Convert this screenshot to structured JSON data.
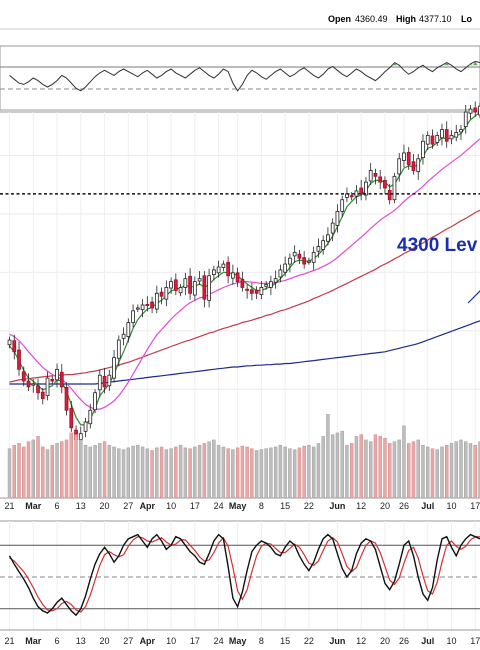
{
  "chart_data": {
    "type": "candlestick",
    "header": {
      "open_label": "Open",
      "open_value": "4360.49",
      "high_label": "High",
      "high_value": "4377.10",
      "low_label": "Lo"
    },
    "annotation": {
      "text": "4300 Lev",
      "level": 4300,
      "color": "#1a2fb0"
    },
    "x_ticks": [
      {
        "label": "21",
        "pos": 0
      },
      {
        "label": "Mar",
        "pos": 5,
        "major": true
      },
      {
        "label": "6",
        "pos": 10
      },
      {
        "label": "13",
        "pos": 15
      },
      {
        "label": "20",
        "pos": 20
      },
      {
        "label": "27",
        "pos": 25
      },
      {
        "label": "Apr",
        "pos": 29,
        "major": true
      },
      {
        "label": "10",
        "pos": 34
      },
      {
        "label": "17",
        "pos": 39
      },
      {
        "label": "24",
        "pos": 44
      },
      {
        "label": "May",
        "pos": 48,
        "major": true
      },
      {
        "label": "8",
        "pos": 53
      },
      {
        "label": "15",
        "pos": 58
      },
      {
        "label": "22",
        "pos": 63
      },
      {
        "label": "Jun",
        "pos": 69,
        "major": true
      },
      {
        "label": "12",
        "pos": 74
      },
      {
        "label": "20",
        "pos": 79
      },
      {
        "label": "26",
        "pos": 83
      },
      {
        "label": "Jul",
        "pos": 88,
        "major": true
      },
      {
        "label": "10",
        "pos": 93
      },
      {
        "label": "17",
        "pos": 98
      }
    ],
    "x_range": [
      -2,
      99
    ],
    "price_range": [
      3780,
      4440
    ],
    "closes": [
      4050,
      4030,
      4000,
      3980,
      3970,
      3975,
      3960,
      3950,
      3985,
      3980,
      4000,
      3970,
      3930,
      3900,
      3880,
      3890,
      3910,
      3930,
      3960,
      3990,
      3970,
      3990,
      4020,
      4050,
      4060,
      4080,
      4100,
      4105,
      4110,
      4110,
      4105,
      4130,
      4125,
      4140,
      4150,
      4135,
      4140,
      4155,
      4130,
      4150,
      4155,
      4120,
      4160,
      4170,
      4175,
      4180,
      4160,
      4165,
      4150,
      4140,
      4135,
      4130,
      4130,
      4140,
      4145,
      4150,
      4155,
      4170,
      4180,
      4190,
      4200,
      4190,
      4180,
      4185,
      4200,
      4210,
      4220,
      4230,
      4250,
      4270,
      4290,
      4300,
      4295,
      4305,
      4300,
      4320,
      4340,
      4330,
      4320,
      4310,
      4290,
      4330,
      4360,
      4370,
      4350,
      4340,
      4360,
      4390,
      4400,
      4385,
      4400,
      4410,
      4390,
      4400,
      4405,
      4410,
      4440,
      4445,
      4440,
      4450
    ],
    "ma_short": [
      4040,
      4030,
      4015,
      3998,
      3985,
      3980,
      3972,
      3965,
      3968,
      3972,
      3982,
      3980,
      3962,
      3940,
      3918,
      3905,
      3905,
      3915,
      3932,
      3955,
      3965,
      3975,
      3992,
      4012,
      4030,
      4050,
      4070,
      4085,
      4095,
      4103,
      4106,
      4113,
      4118,
      4126,
      4134,
      4137,
      4139,
      4144,
      4141,
      4142,
      4146,
      4140,
      4145,
      4154,
      4160,
      4166,
      4165,
      4164,
      4160,
      4153,
      4146,
      4140,
      4135,
      4135,
      4138,
      4142,
      4147,
      4155,
      4164,
      4174,
      4184,
      4187,
      4185,
      4185,
      4189,
      4196,
      4205,
      4215,
      4228,
      4244,
      4261,
      4278,
      4287,
      4295,
      4298,
      4306,
      4318,
      4323,
      4323,
      4320,
      4312,
      4317,
      4330,
      4344,
      4348,
      4346,
      4350,
      4364,
      4378,
      4381,
      4388,
      4396,
      4394,
      4396,
      4399,
      4403,
      4415,
      4427,
      4433,
      4440
    ],
    "ma_medium": [
      4060,
      4056,
      4049,
      4040,
      4030,
      4021,
      4012,
      4003,
      3997,
      3991,
      3987,
      3983,
      3976,
      3967,
      3957,
      3948,
      3940,
      3935,
      3932,
      3932,
      3935,
      3940,
      3946,
      3955,
      3966,
      3978,
      3992,
      4006,
      4020,
      4034,
      4047,
      4059,
      4068,
      4077,
      4086,
      4094,
      4101,
      4108,
      4114,
      4118,
      4122,
      4124,
      4128,
      4132,
      4136,
      4140,
      4143,
      4146,
      4148,
      4150,
      4150,
      4149,
      4148,
      4147,
      4147,
      4147,
      4148,
      4150,
      4152,
      4155,
      4158,
      4161,
      4163,
      4166,
      4169,
      4172,
      4176,
      4180,
      4185,
      4191,
      4198,
      4205,
      4212,
      4219,
      4226,
      4233,
      4241,
      4248,
      4255,
      4261,
      4266,
      4272,
      4279,
      4287,
      4294,
      4300,
      4306,
      4313,
      4321,
      4328,
      4335,
      4342,
      4348,
      4354,
      4360,
      4366,
      4373,
      4380,
      4387,
      4394
    ],
    "ma_long": [
      3978,
      3980,
      3982,
      3983,
      3984,
      3985,
      3986,
      3987,
      3988,
      3989,
      3990,
      3990,
      3991,
      3991,
      3992,
      3993,
      3994,
      3996,
      3997,
      3999,
      4001,
      4003,
      4005,
      4007,
      4010,
      4012,
      4015,
      4018,
      4021,
      4024,
      4027,
      4030,
      4033,
      4036,
      4039,
      4042,
      4045,
      4048,
      4050,
      4053,
      4056,
      4059,
      4062,
      4064,
      4067,
      4070,
      4072,
      4075,
      4077,
      4080,
      4082,
      4084,
      4087,
      4089,
      4092,
      4094,
      4097,
      4100,
      4102,
      4105,
      4108,
      4111,
      4114,
      4117,
      4121,
      4124,
      4128,
      4131,
      4135,
      4139,
      4143,
      4147,
      4151,
      4155,
      4159,
      4163,
      4167,
      4171,
      4176,
      4180,
      4184,
      4189,
      4193,
      4198,
      4202,
      4207,
      4212,
      4216,
      4221,
      4226,
      4230,
      4235,
      4240,
      4244,
      4249,
      4254,
      4258,
      4263,
      4268,
      4272
    ],
    "ma_longest": [
      3975,
      3975,
      3975,
      3975,
      3975,
      3975,
      3975,
      3975,
      3975,
      3975,
      3975,
      3975,
      3975,
      3975,
      3975,
      3975,
      3975,
      3975,
      3975,
      3976,
      3977,
      3978,
      3979,
      3980,
      3981,
      3982,
      3983,
      3984,
      3985,
      3986,
      3987,
      3988,
      3989,
      3990,
      3991,
      3992,
      3993,
      3994,
      3995,
      3996,
      3997,
      3998,
      3999,
      4000,
      4001,
      4002,
      4003,
      4004,
      4004,
      4005,
      4006,
      4006,
      4007,
      4007,
      4008,
      4008,
      4009,
      4009,
      4010,
      4010,
      4011,
      4012,
      4013,
      4014,
      4015,
      4016,
      4017,
      4018,
      4019,
      4020,
      4021,
      4022,
      4023,
      4024,
      4025,
      4026,
      4027,
      4028,
      4029,
      4030,
      4032,
      4034,
      4036,
      4038,
      4040,
      4042,
      4044,
      4047,
      4050,
      4053,
      4056,
      4059,
      4062,
      4065,
      4068,
      4071,
      4074,
      4077,
      4080,
      4083
    ],
    "volume_range": [
      0,
      100
    ],
    "volume": [
      56,
      60,
      62,
      58,
      64,
      66,
      70,
      58,
      55,
      60,
      62,
      64,
      66,
      74,
      72,
      66,
      60,
      58,
      60,
      62,
      64,
      60,
      58,
      56,
      55,
      57,
      59,
      60,
      58,
      56,
      54,
      57,
      58,
      55,
      56,
      58,
      60,
      57,
      56,
      58,
      60,
      62,
      64,
      66,
      60,
      58,
      56,
      55,
      57,
      59,
      58,
      56,
      54,
      55,
      56,
      57,
      58,
      60,
      58,
      56,
      55,
      57,
      59,
      60,
      58,
      62,
      70,
      95,
      72,
      74,
      76,
      60,
      62,
      70,
      72,
      66,
      64,
      72,
      70,
      68,
      62,
      64,
      66,
      82,
      62,
      64,
      66,
      60,
      58,
      56,
      55,
      58,
      60,
      62,
      64,
      66,
      64,
      62,
      60,
      64
    ],
    "oscillator_range": [
      0,
      100
    ],
    "oscillator_levels": [
      80,
      50,
      20
    ],
    "oscillator_k": [
      70,
      62,
      55,
      48,
      40,
      30,
      22,
      18,
      16,
      20,
      26,
      30,
      24,
      18,
      14,
      20,
      32,
      48,
      62,
      72,
      78,
      72,
      64,
      70,
      80,
      86,
      88,
      90,
      84,
      78,
      86,
      90,
      84,
      76,
      80,
      88,
      86,
      80,
      74,
      70,
      64,
      62,
      72,
      84,
      90,
      86,
      60,
      30,
      22,
      36,
      56,
      74,
      80,
      84,
      82,
      78,
      72,
      70,
      78,
      84,
      80,
      70,
      62,
      56,
      64,
      76,
      86,
      90,
      86,
      72,
      58,
      50,
      56,
      72,
      82,
      86,
      84,
      76,
      60,
      44,
      38,
      46,
      62,
      80,
      84,
      70,
      50,
      34,
      28,
      40,
      66,
      86,
      88,
      78,
      70,
      80,
      86,
      90,
      88,
      86
    ],
    "oscillator_d": [
      68,
      65,
      60,
      55,
      48,
      40,
      31,
      24,
      19,
      18,
      20,
      25,
      27,
      24,
      19,
      17,
      22,
      33,
      47,
      61,
      71,
      74,
      71,
      69,
      71,
      79,
      85,
      88,
      87,
      84,
      83,
      85,
      87,
      83,
      80,
      81,
      85,
      85,
      80,
      75,
      69,
      65,
      66,
      73,
      82,
      87,
      79,
      59,
      37,
      29,
      38,
      55,
      70,
      79,
      82,
      81,
      77,
      73,
      73,
      77,
      81,
      78,
      71,
      63,
      61,
      65,
      75,
      84,
      87,
      83,
      72,
      60,
      55,
      59,
      70,
      80,
      84,
      82,
      73,
      60,
      47,
      43,
      49,
      63,
      75,
      78,
      68,
      51,
      37,
      34,
      45,
      64,
      80,
      84,
      79,
      76,
      79,
      85,
      88,
      88
    ],
    "momentum": [
      52,
      49,
      46,
      45,
      47,
      50,
      48,
      45,
      43,
      45,
      48,
      52,
      50,
      46,
      42,
      40,
      43,
      47,
      51,
      54,
      56,
      54,
      52,
      55,
      57,
      55,
      53,
      51,
      54,
      56,
      53,
      50,
      52,
      55,
      57,
      54,
      52,
      50,
      53,
      56,
      58,
      55,
      52,
      50,
      53,
      57,
      55,
      46,
      40,
      45,
      52,
      56,
      54,
      51,
      49,
      52,
      55,
      57,
      54,
      51,
      53,
      56,
      58,
      55,
      52,
      50,
      53,
      57,
      59,
      56,
      53,
      51,
      54,
      57,
      55,
      52,
      50,
      48,
      51,
      55,
      58,
      62,
      60,
      56,
      53,
      55,
      58,
      60,
      57,
      55,
      58,
      60,
      62,
      60,
      57,
      55,
      58,
      61,
      63,
      62
    ],
    "momentum_range": [
      25,
      75
    ]
  }
}
